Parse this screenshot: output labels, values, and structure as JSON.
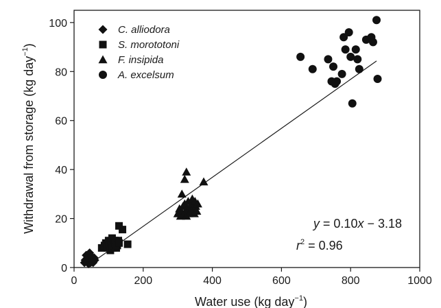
{
  "chart_data": {
    "type": "scatter",
    "title": "",
    "xlabel": "Water use (kg day",
    "xlabel_sup": "−1",
    "xlabel_close": ")",
    "ylabel": "Withdrawal from storage (kg day",
    "ylabel_sup": "−1",
    "ylabel_close": ")",
    "xlim": [
      0,
      1000
    ],
    "ylim": [
      0,
      105
    ],
    "xticks": [
      0,
      200,
      400,
      600,
      800,
      1000
    ],
    "yticks": [
      0,
      20,
      40,
      60,
      80,
      100
    ],
    "grid": false,
    "legend_position": "top-left",
    "series": [
      {
        "name": "C. alliodora",
        "marker": "diamond",
        "points": [
          [
            30,
            2
          ],
          [
            32,
            3
          ],
          [
            35,
            5
          ],
          [
            38,
            2.5
          ],
          [
            40,
            4
          ],
          [
            42,
            1.5
          ],
          [
            44,
            3.5
          ],
          [
            45,
            6
          ],
          [
            48,
            2
          ],
          [
            50,
            4.5
          ],
          [
            52,
            3
          ],
          [
            55,
            2
          ],
          [
            58,
            4
          ],
          [
            60,
            3
          ]
        ]
      },
      {
        "name": "S. morototoni",
        "marker": "square",
        "points": [
          [
            80,
            8
          ],
          [
            88,
            9
          ],
          [
            92,
            10
          ],
          [
            96,
            8
          ],
          [
            100,
            11
          ],
          [
            102,
            9
          ],
          [
            105,
            7
          ],
          [
            108,
            10
          ],
          [
            110,
            12
          ],
          [
            112,
            8
          ],
          [
            115,
            9
          ],
          [
            118,
            11
          ],
          [
            120,
            10
          ],
          [
            122,
            8
          ],
          [
            125,
            9
          ],
          [
            128,
            11
          ],
          [
            130,
            10
          ],
          [
            130,
            17
          ],
          [
            140,
            15.5
          ],
          [
            155,
            9.5
          ]
        ]
      },
      {
        "name": "F. insipida",
        "marker": "triangle",
        "points": [
          [
            300,
            22
          ],
          [
            305,
            24
          ],
          [
            308,
            21
          ],
          [
            310,
            23
          ],
          [
            312,
            30
          ],
          [
            315,
            25
          ],
          [
            318,
            22
          ],
          [
            320,
            26
          ],
          [
            320,
            36
          ],
          [
            322,
            23
          ],
          [
            325,
            39
          ],
          [
            325,
            21
          ],
          [
            328,
            24
          ],
          [
            330,
            27
          ],
          [
            332,
            22
          ],
          [
            335,
            25
          ],
          [
            338,
            23
          ],
          [
            340,
            26
          ],
          [
            342,
            28
          ],
          [
            345,
            24
          ],
          [
            348,
            22
          ],
          [
            350,
            27
          ],
          [
            352,
            25
          ],
          [
            355,
            23
          ],
          [
            358,
            26
          ],
          [
            375,
            35
          ]
        ]
      },
      {
        "name": "A. excelsum",
        "marker": "circle",
        "points": [
          [
            655,
            86
          ],
          [
            690,
            81
          ],
          [
            735,
            85
          ],
          [
            745,
            76
          ],
          [
            750,
            82
          ],
          [
            755,
            75
          ],
          [
            760,
            76
          ],
          [
            775,
            79
          ],
          [
            780,
            94
          ],
          [
            785,
            89
          ],
          [
            795,
            96
          ],
          [
            800,
            86
          ],
          [
            805,
            67
          ],
          [
            815,
            89
          ],
          [
            820,
            85
          ],
          [
            825,
            81
          ],
          [
            845,
            93
          ],
          [
            860,
            94
          ],
          [
            865,
            92
          ],
          [
            875,
            101
          ],
          [
            878,
            77
          ]
        ]
      }
    ],
    "fit_line": {
      "x": [
        40,
        875
      ],
      "y": [
        0.82,
        84.32
      ]
    },
    "annotations": {
      "equation_y": "y",
      "equation_rest": " = 0.10",
      "equation_x": "x",
      "equation_tail": " − 3.18",
      "r2_r": "r",
      "r2_sup": "2",
      "r2_rest": " = 0.96"
    }
  }
}
